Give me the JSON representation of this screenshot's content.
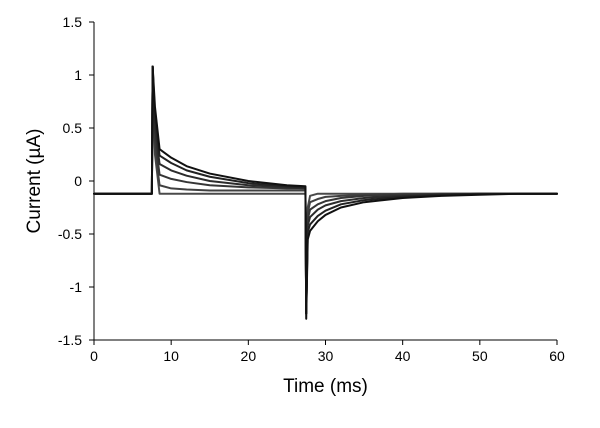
{
  "chart_data": {
    "type": "line",
    "xlabel": "Time (ms)",
    "ylabel": "Current (µA)",
    "xlim": [
      0,
      60
    ],
    "ylim": [
      -1.5,
      1.5
    ],
    "xticks": [
      0,
      10,
      20,
      30,
      40,
      50,
      60
    ],
    "xtick_labels": [
      "0",
      "10",
      "20",
      "30",
      "40",
      "50",
      "60"
    ],
    "yticks": [
      1.5,
      1,
      0.5,
      0,
      -0.5,
      -1,
      -1.5
    ],
    "ytick_labels": [
      "1.5",
      "1",
      "0.5",
      "0",
      "-0.5",
      "-1",
      "-1.5"
    ],
    "grid": false,
    "legend": "none",
    "line_colors": [
      "#4a4a4a",
      "#404040",
      "#363636",
      "#2c2c2c",
      "#222222",
      "#111111"
    ],
    "series": [
      {
        "x": [
          0,
          7.5,
          7.6,
          7.9,
          8.5,
          10,
          12,
          15,
          20,
          25,
          27.4,
          27.5,
          27.7,
          28,
          29,
          30,
          32,
          35,
          40,
          45,
          50,
          55,
          60
        ],
        "y": [
          -0.12,
          -0.12,
          1.08,
          0.25,
          -0.12,
          -0.12,
          -0.12,
          -0.12,
          -0.12,
          -0.12,
          -0.12,
          -1.25,
          -0.25,
          -0.14,
          -0.12,
          -0.12,
          -0.12,
          -0.12,
          -0.12,
          -0.12,
          -0.12,
          -0.12,
          -0.12
        ]
      },
      {
        "x": [
          0,
          7.5,
          7.6,
          7.9,
          8.5,
          10,
          12,
          15,
          20,
          25,
          27.4,
          27.5,
          27.7,
          28,
          29,
          30,
          32,
          35,
          40,
          45,
          50,
          55,
          60
        ],
        "y": [
          -0.12,
          -0.12,
          1.08,
          0.3,
          -0.04,
          -0.07,
          -0.08,
          -0.09,
          -0.09,
          -0.09,
          -0.09,
          -1.25,
          -0.3,
          -0.2,
          -0.17,
          -0.15,
          -0.14,
          -0.13,
          -0.12,
          -0.12,
          -0.12,
          -0.12,
          -0.12
        ]
      },
      {
        "x": [
          0,
          7.5,
          7.6,
          7.9,
          8.5,
          10,
          12,
          15,
          20,
          25,
          27.4,
          27.5,
          27.7,
          28,
          29,
          30,
          32,
          35,
          40,
          45,
          50,
          55,
          60
        ],
        "y": [
          -0.12,
          -0.12,
          1.08,
          0.4,
          0.06,
          0.02,
          -0.01,
          -0.04,
          -0.06,
          -0.07,
          -0.07,
          -1.25,
          -0.36,
          -0.27,
          -0.22,
          -0.19,
          -0.16,
          -0.14,
          -0.13,
          -0.12,
          -0.12,
          -0.12,
          -0.12
        ]
      },
      {
        "x": [
          0,
          7.5,
          7.6,
          7.9,
          8.5,
          10,
          12,
          15,
          20,
          25,
          27.4,
          27.5,
          27.7,
          28,
          29,
          30,
          32,
          35,
          40,
          45,
          50,
          55,
          60
        ],
        "y": [
          -0.12,
          -0.12,
          1.08,
          0.5,
          0.16,
          0.1,
          0.05,
          0.0,
          -0.04,
          -0.06,
          -0.07,
          -1.25,
          -0.42,
          -0.34,
          -0.27,
          -0.23,
          -0.19,
          -0.16,
          -0.14,
          -0.13,
          -0.12,
          -0.12,
          -0.12
        ]
      },
      {
        "x": [
          0,
          7.5,
          7.6,
          7.9,
          8.5,
          10,
          12,
          15,
          20,
          25,
          27.4,
          27.5,
          27.7,
          28,
          29,
          30,
          32,
          35,
          40,
          45,
          50,
          55,
          60
        ],
        "y": [
          -0.12,
          -0.12,
          1.08,
          0.6,
          0.24,
          0.17,
          0.1,
          0.04,
          -0.02,
          -0.05,
          -0.06,
          -1.25,
          -0.48,
          -0.41,
          -0.33,
          -0.28,
          -0.22,
          -0.18,
          -0.15,
          -0.13,
          -0.12,
          -0.12,
          -0.12
        ]
      },
      {
        "x": [
          0,
          7.5,
          7.6,
          7.9,
          8.5,
          10,
          12,
          15,
          20,
          25,
          27.4,
          27.5,
          27.7,
          28,
          29,
          30,
          32,
          35,
          40,
          45,
          50,
          55,
          60
        ],
        "y": [
          -0.12,
          -0.12,
          1.08,
          0.7,
          0.3,
          0.22,
          0.14,
          0.07,
          0.0,
          -0.04,
          -0.05,
          -1.3,
          -0.55,
          -0.47,
          -0.38,
          -0.32,
          -0.25,
          -0.2,
          -0.16,
          -0.14,
          -0.13,
          -0.12,
          -0.12
        ]
      }
    ]
  }
}
